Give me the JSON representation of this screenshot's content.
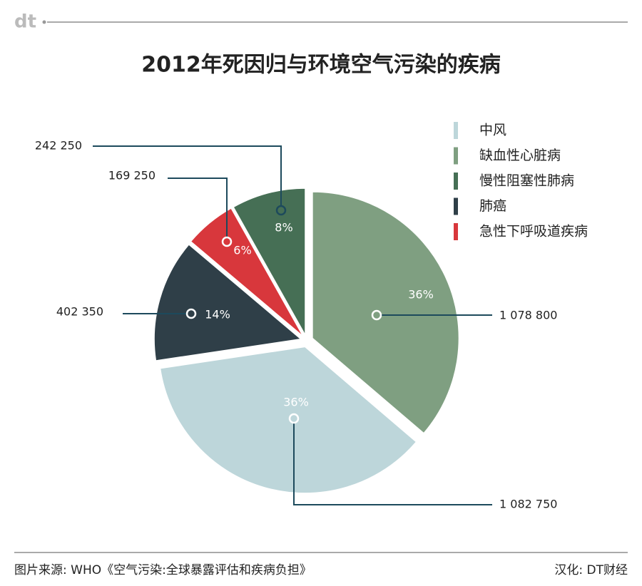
{
  "logo": "dt",
  "chart_data": {
    "type": "pie",
    "title": "2012年死因归与环境空气污染的疾病",
    "categories": [
      "中风",
      "缺血性心脏病",
      "慢性阻塞性肺病",
      "肺癌",
      "急性下呼吸道疾病"
    ],
    "values": [
      1082750,
      1078800,
      242250,
      402350,
      169250
    ],
    "value_labels": [
      "1 082 750",
      "1 078 800",
      "242 250",
      "402 350",
      "169 250"
    ],
    "percent_labels": [
      "36%",
      "36%",
      "8%",
      "14%",
      "6%"
    ],
    "colors": [
      "#bdd6da",
      "#7f9f81",
      "#466f55",
      "#2f3f48",
      "#d8373c"
    ],
    "legend_position": "upper right"
  },
  "footer": {
    "source": "图片来源: WHO《空气污染:全球暴露评估和疾病负担》",
    "credit": "汉化: DT财经"
  }
}
